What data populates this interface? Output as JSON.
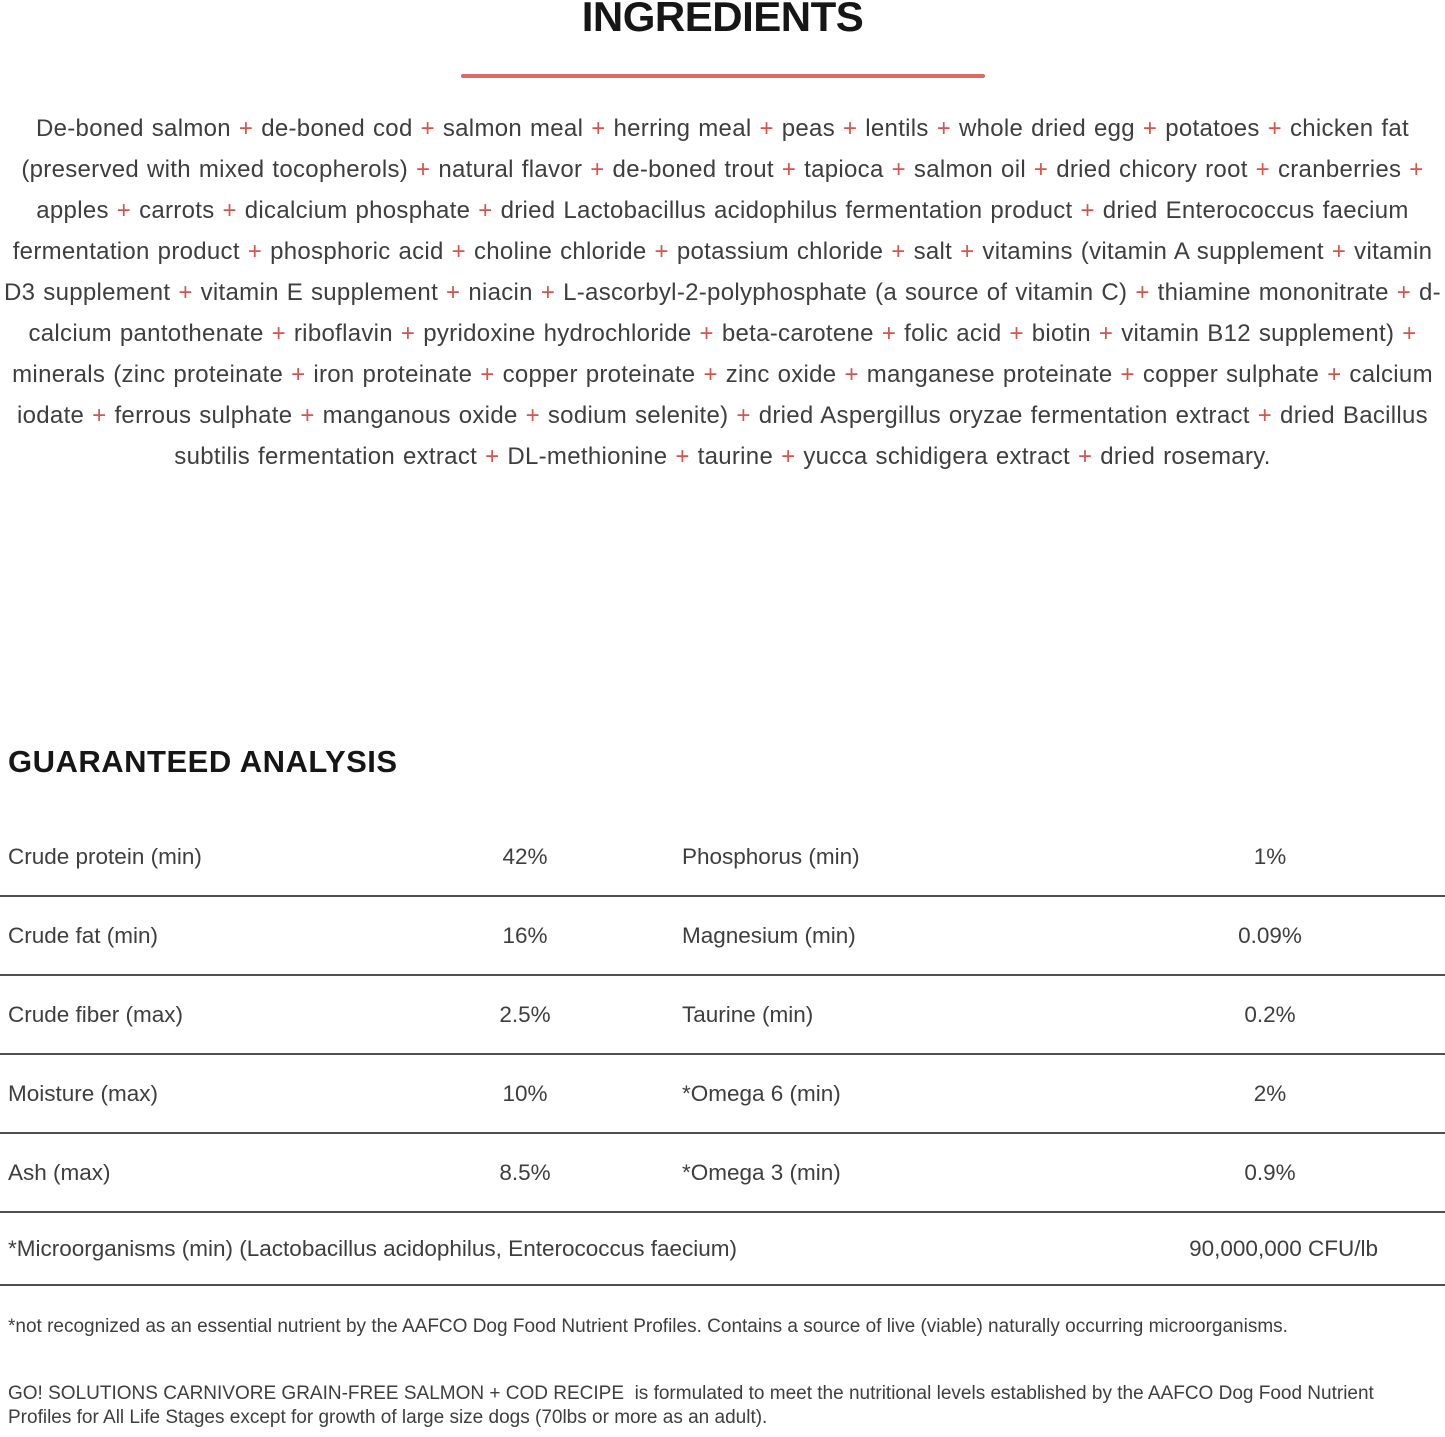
{
  "page": {
    "accent_plus_color": "#d7544a",
    "divider_color": "#d96b62",
    "rule_color": "#4f4f4f"
  },
  "ingredients": {
    "title": "INGREDIENTS",
    "separator": "+",
    "items": [
      "De-boned salmon",
      "de-boned cod",
      "salmon meal",
      "herring meal",
      "peas",
      "lentils",
      "whole dried egg",
      "potatoes",
      "chicken fat (preserved with mixed tocopherols)",
      "natural flavor",
      "de-boned trout",
      "tapioca",
      "salmon oil",
      "dried chicory root",
      "cranberries",
      "apples",
      "carrots",
      "dicalcium phosphate",
      "dried Lactobacillus acidophilus fermentation product",
      "dried Enterococcus faecium fermentation product",
      "phosphoric acid",
      "choline chloride",
      "potassium chloride",
      "salt",
      "vitamins (vitamin A supplement",
      "vitamin D3 supplement",
      "vitamin E supplement",
      "niacin",
      "L-ascorbyl-2-polyphosphate (a source of vitamin C)",
      "thiamine mononitrate",
      "d-calcium pantothenate",
      "riboflavin",
      "pyridoxine hydrochloride",
      "beta-carotene",
      "folic acid",
      "biotin",
      "vitamin B12 supplement)",
      "minerals (zinc proteinate",
      "iron proteinate",
      "copper proteinate",
      "zinc oxide",
      "manganese proteinate",
      "copper sulphate",
      "calcium iodate",
      "ferrous sulphate",
      "manganous oxide",
      "sodium selenite)",
      "dried Aspergillus oryzae fermentation extract",
      "dried Bacillus subtilis fermentation extract",
      "DL-methionine",
      "taurine",
      "yucca schidigera extract",
      "dried rosemary."
    ]
  },
  "guaranteed_analysis": {
    "title": "GUARANTEED ANALYSIS",
    "rows": [
      {
        "left_label": "Crude protein (min)",
        "left_value": "42%",
        "right_label": "Phosphorus (min)",
        "right_value": "1%"
      },
      {
        "left_label": "Crude fat (min)",
        "left_value": "16%",
        "right_label": "Magnesium (min)",
        "right_value": "0.09%"
      },
      {
        "left_label": "Crude fiber (max)",
        "left_value": "2.5%",
        "right_label": "Taurine (min)",
        "right_value": "0.2%"
      },
      {
        "left_label": "Moisture (max)",
        "left_value": "10%",
        "right_label": "*Omega 6 (min)",
        "right_value": "2%"
      },
      {
        "left_label": "Ash (max)",
        "left_value": "8.5%",
        "right_label": "*Omega 3 (min)",
        "right_value": "0.9%"
      }
    ],
    "full_row": {
      "label": "*Microorganisms (min) (Lactobacillus acidophilus, Enterococcus faecium)",
      "value": "90,000,000 CFU/lb"
    }
  },
  "footnotes": {
    "asterisk_note": "*not recognized as an essential nutrient by the AAFCO Dog Food Nutrient Profiles. Contains a source of live (viable) naturally occurring microorganisms.",
    "aafco_statement": "GO! SOLUTIONS CARNIVORE GRAIN-FREE SALMON + COD RECIPE  is formulated to meet the nutritional levels established by the AAFCO Dog Food Nutrient Profiles for All Life Stages except for growth of large size dogs (70lbs or more as an adult)."
  }
}
